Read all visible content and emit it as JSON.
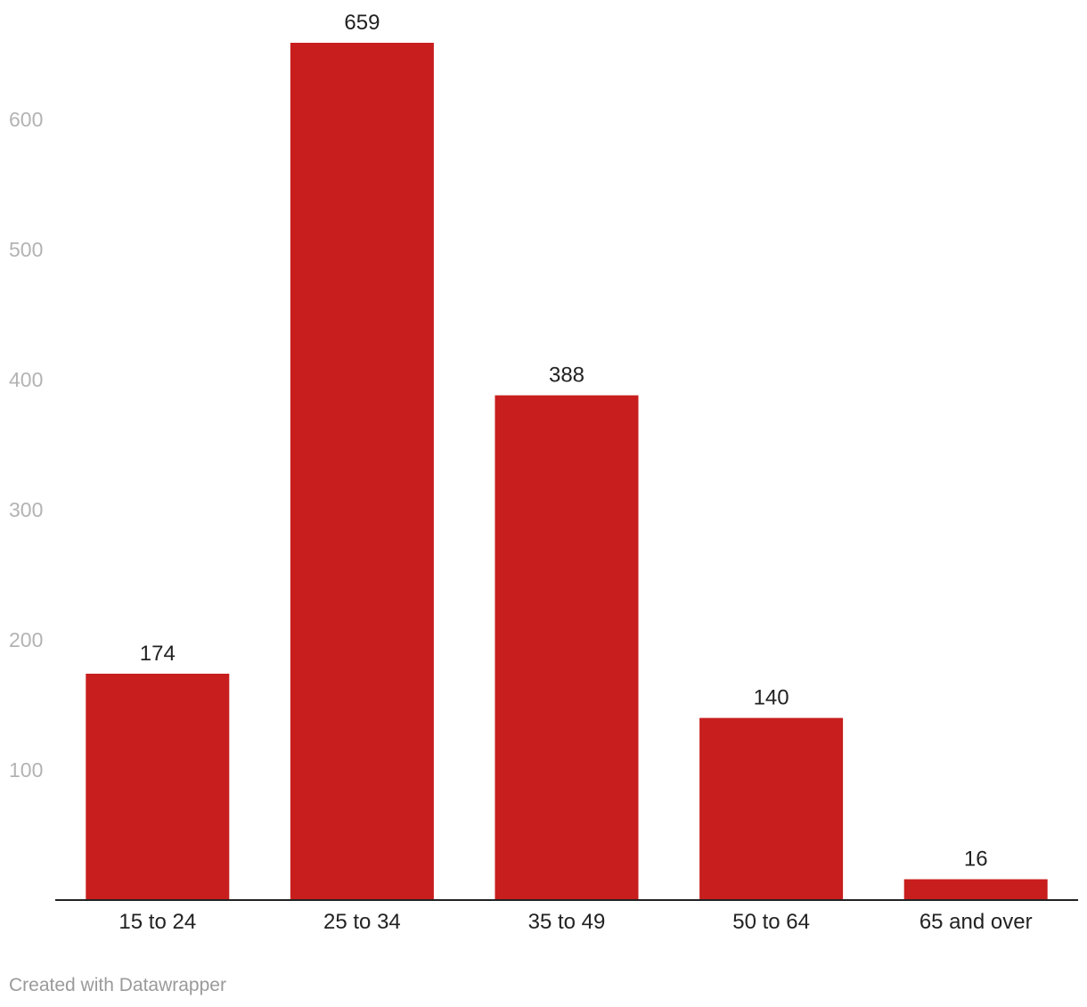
{
  "chart_data": {
    "type": "bar",
    "categories": [
      "15 to 24",
      "25 to 34",
      "35 to 49",
      "50 to 64",
      "65 and over"
    ],
    "values": [
      174,
      659,
      388,
      140,
      16
    ],
    "yticks": [
      100,
      200,
      300,
      400,
      500,
      600
    ],
    "ylim": [
      0,
      659
    ],
    "grid": false,
    "bar_color": "#c81e1e",
    "data_labels": true
  },
  "footer": {
    "credit": "Created with Datawrapper"
  }
}
